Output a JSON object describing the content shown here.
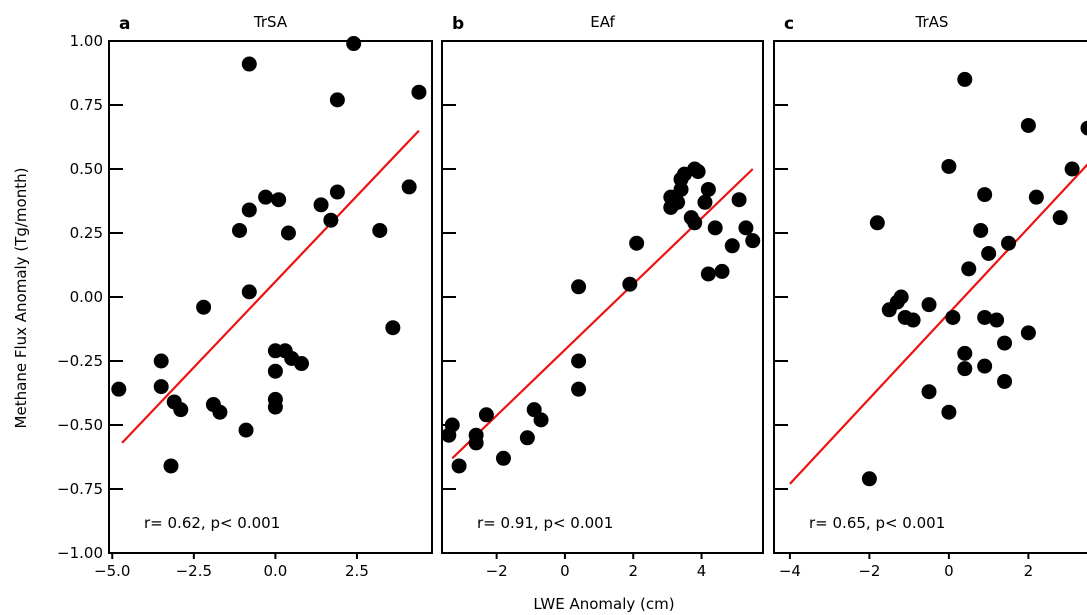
{
  "figure": {
    "ylabel": "Methane Flux Anomaly (Tg/month)",
    "xlabel": "LWE Anomaly  (cm)",
    "ylim": [
      -1.0,
      1.0
    ],
    "yticks": [
      -1.0,
      -0.75,
      -0.5,
      -0.25,
      0.0,
      0.25,
      0.5,
      0.75,
      1.0
    ],
    "ytick_labels": [
      "−1.00",
      "−0.75",
      "−0.50",
      "−0.25",
      "0.00",
      "0.25",
      "0.50",
      "0.75",
      "1.00"
    ],
    "point_color": "#000000",
    "fit_color": "#ee1111"
  },
  "chart_data": [
    {
      "type": "scatter",
      "panel_letter": "a",
      "title": "TrSA",
      "annotation": "r= 0.62, p< 0.001",
      "xlim": [
        -5.1,
        4.8
      ],
      "xticks": [
        -5.0,
        -2.5,
        0.0,
        2.5
      ],
      "xtick_labels": [
        "−5.0",
        "−2.5",
        "0.0",
        "2.5"
      ],
      "fit": {
        "x": [
          -4.7,
          4.4
        ],
        "y": [
          -0.57,
          0.65
        ]
      },
      "points": [
        {
          "x": -4.8,
          "y": -0.36
        },
        {
          "x": -3.5,
          "y": -0.25
        },
        {
          "x": -3.5,
          "y": -0.35
        },
        {
          "x": -3.1,
          "y": -0.41
        },
        {
          "x": -3.2,
          "y": -0.66
        },
        {
          "x": -2.9,
          "y": -0.44
        },
        {
          "x": -2.2,
          "y": -0.04
        },
        {
          "x": -1.9,
          "y": -0.42
        },
        {
          "x": -1.7,
          "y": -0.45
        },
        {
          "x": -1.1,
          "y": 0.26
        },
        {
          "x": -0.9,
          "y": -0.52
        },
        {
          "x": -0.8,
          "y": 0.02
        },
        {
          "x": -0.8,
          "y": 0.34
        },
        {
          "x": -0.8,
          "y": 0.91
        },
        {
          "x": -0.3,
          "y": 0.39
        },
        {
          "x": 0.0,
          "y": -0.21
        },
        {
          "x": 0.0,
          "y": -0.29
        },
        {
          "x": 0.0,
          "y": -0.4
        },
        {
          "x": 0.0,
          "y": -0.43
        },
        {
          "x": 0.1,
          "y": 0.38
        },
        {
          "x": 0.3,
          "y": -0.21
        },
        {
          "x": 0.5,
          "y": -0.24
        },
        {
          "x": 0.4,
          "y": 0.25
        },
        {
          "x": 0.8,
          "y": -0.26
        },
        {
          "x": 1.4,
          "y": 0.36
        },
        {
          "x": 1.7,
          "y": 0.3
        },
        {
          "x": 1.9,
          "y": 0.41
        },
        {
          "x": 1.9,
          "y": 0.77
        },
        {
          "x": 2.4,
          "y": 0.99
        },
        {
          "x": 3.2,
          "y": 0.26
        },
        {
          "x": 3.6,
          "y": -0.12
        },
        {
          "x": 4.1,
          "y": 0.43
        },
        {
          "x": 4.4,
          "y": 0.8
        }
      ]
    },
    {
      "type": "scatter",
      "panel_letter": "b",
      "title": "EAf",
      "annotation": "r= 0.91, p< 0.001",
      "xlim": [
        -3.6,
        5.8
      ],
      "xticks": [
        -2,
        0,
        2,
        4
      ],
      "xtick_labels": [
        "−2",
        "0",
        "2",
        "4"
      ],
      "fit": {
        "x": [
          -3.3,
          5.5
        ],
        "y": [
          -0.63,
          0.5
        ]
      },
      "points": [
        {
          "x": -3.4,
          "y": -0.54
        },
        {
          "x": -3.3,
          "y": -0.5
        },
        {
          "x": -3.1,
          "y": -0.66
        },
        {
          "x": -2.6,
          "y": -0.57
        },
        {
          "x": -2.6,
          "y": -0.54
        },
        {
          "x": -2.3,
          "y": -0.46
        },
        {
          "x": -1.8,
          "y": -0.63
        },
        {
          "x": -1.1,
          "y": -0.55
        },
        {
          "x": -0.9,
          "y": -0.44
        },
        {
          "x": -0.7,
          "y": -0.48
        },
        {
          "x": 0.4,
          "y": 0.04
        },
        {
          "x": 0.4,
          "y": -0.25
        },
        {
          "x": 0.4,
          "y": -0.36
        },
        {
          "x": 1.9,
          "y": 0.05
        },
        {
          "x": 2.1,
          "y": 0.21
        },
        {
          "x": 3.1,
          "y": 0.39
        },
        {
          "x": 3.1,
          "y": 0.35
        },
        {
          "x": 3.3,
          "y": 0.37
        },
        {
          "x": 3.4,
          "y": 0.42
        },
        {
          "x": 3.4,
          "y": 0.46
        },
        {
          "x": 3.5,
          "y": 0.48
        },
        {
          "x": 3.7,
          "y": 0.31
        },
        {
          "x": 3.8,
          "y": 0.5
        },
        {
          "x": 3.8,
          "y": 0.29
        },
        {
          "x": 3.9,
          "y": 0.49
        },
        {
          "x": 4.1,
          "y": 0.37
        },
        {
          "x": 4.2,
          "y": 0.42
        },
        {
          "x": 4.2,
          "y": 0.09
        },
        {
          "x": 4.4,
          "y": 0.27
        },
        {
          "x": 4.6,
          "y": 0.1
        },
        {
          "x": 4.9,
          "y": 0.2
        },
        {
          "x": 5.1,
          "y": 0.38
        },
        {
          "x": 5.3,
          "y": 0.27
        },
        {
          "x": 5.5,
          "y": 0.22
        }
      ]
    },
    {
      "type": "scatter",
      "panel_letter": "c",
      "title": "TrAS",
      "annotation": "r= 0.65, p< 0.001",
      "xlim": [
        -4.4,
        3.55
      ],
      "xticks": [
        -4,
        -2,
        0,
        2
      ],
      "xtick_labels": [
        "−4",
        "−2",
        "0",
        "2"
      ],
      "fit": {
        "x": [
          -4.0,
          3.5
        ],
        "y": [
          -0.73,
          0.52
        ]
      },
      "points": [
        {
          "x": -2.0,
          "y": -0.71
        },
        {
          "x": -1.8,
          "y": 0.29
        },
        {
          "x": -1.5,
          "y": -0.05
        },
        {
          "x": -1.3,
          "y": -0.02
        },
        {
          "x": -1.2,
          "y": 0.0
        },
        {
          "x": -1.1,
          "y": -0.08
        },
        {
          "x": -0.9,
          "y": -0.09
        },
        {
          "x": -0.5,
          "y": -0.37
        },
        {
          "x": -0.5,
          "y": -0.03
        },
        {
          "x": 0.0,
          "y": 0.51
        },
        {
          "x": 0.0,
          "y": -0.45
        },
        {
          "x": 0.1,
          "y": -0.08
        },
        {
          "x": 0.4,
          "y": 0.85
        },
        {
          "x": 0.4,
          "y": -0.22
        },
        {
          "x": 0.4,
          "y": -0.28
        },
        {
          "x": 0.5,
          "y": 0.11
        },
        {
          "x": 0.8,
          "y": 0.26
        },
        {
          "x": 0.9,
          "y": 0.4
        },
        {
          "x": 0.9,
          "y": -0.08
        },
        {
          "x": 0.9,
          "y": -0.27
        },
        {
          "x": 1.0,
          "y": 0.17
        },
        {
          "x": 1.2,
          "y": -0.09
        },
        {
          "x": 1.4,
          "y": -0.18
        },
        {
          "x": 1.4,
          "y": -0.33
        },
        {
          "x": 1.5,
          "y": 0.21
        },
        {
          "x": 2.0,
          "y": 0.67
        },
        {
          "x": 2.0,
          "y": -0.14
        },
        {
          "x": 2.2,
          "y": 0.39
        },
        {
          "x": 2.8,
          "y": 0.31
        },
        {
          "x": 3.1,
          "y": 0.5
        },
        {
          "x": 3.5,
          "y": 0.66
        }
      ]
    }
  ]
}
